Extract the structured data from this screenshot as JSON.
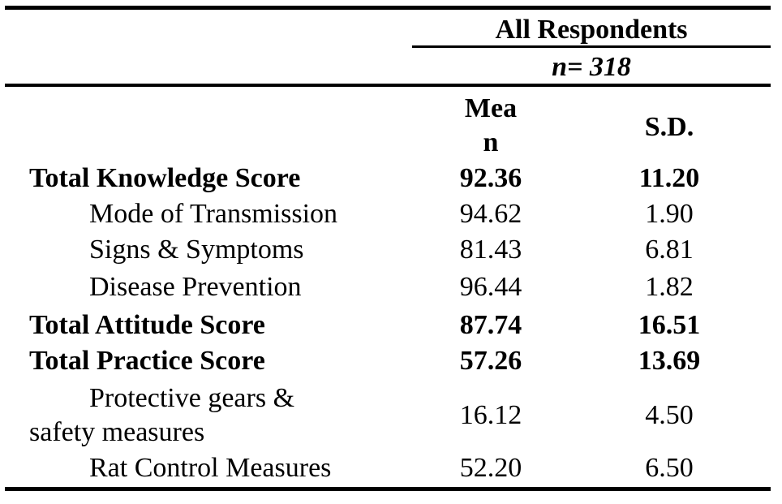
{
  "table": {
    "group_header": "All Respondents",
    "n_label": "n= 318",
    "columns": {
      "mean_line1": "Mea",
      "mean_line2": "n",
      "sd": "S.D."
    },
    "rows": [
      {
        "label": "Total Knowledge Score",
        "mean": "92.36",
        "sd": "11.20",
        "bold": true
      },
      {
        "label": "Mode of Transmission",
        "mean": "94.62",
        "sd": "1.90",
        "bold": false
      },
      {
        "label": "Signs & Symptoms",
        "mean": "81.43",
        "sd": "6.81",
        "bold": false
      },
      {
        "label": "Disease Prevention",
        "mean": "96.44",
        "sd": "1.82",
        "bold": false
      },
      {
        "label": "Total Attitude Score",
        "mean": "87.74",
        "sd": "16.51",
        "bold": true
      },
      {
        "label": "Total Practice Score",
        "mean": "57.26",
        "sd": "13.69",
        "bold": true
      },
      {
        "label_line1": "Protective gears &",
        "label_line2": "safety measures",
        "mean": "16.12",
        "sd": "4.50",
        "bold": false
      },
      {
        "label": "Rat Control Measures",
        "mean": "52.20",
        "sd": "6.50",
        "bold": false
      }
    ]
  }
}
